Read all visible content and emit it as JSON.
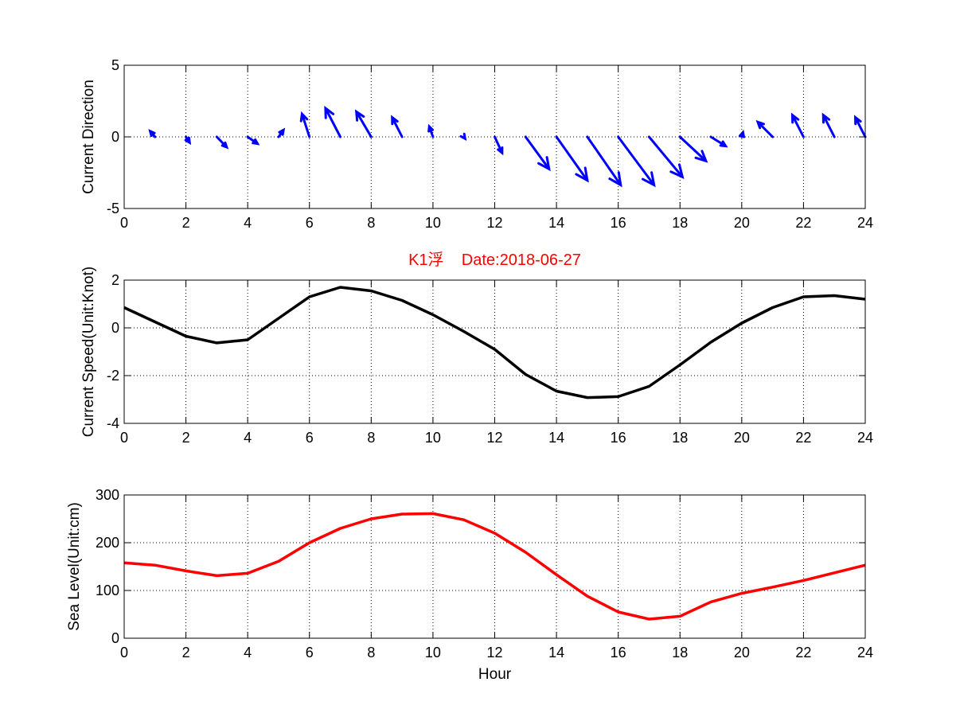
{
  "chart_data": [
    {
      "type": "quiver",
      "title": "",
      "xlabel": "",
      "ylabel": "Current Direction",
      "xlim": [
        0,
        24
      ],
      "ylim": [
        -5,
        5
      ],
      "xticks": [
        "0",
        "2",
        "4",
        "6",
        "8",
        "10",
        "12",
        "14",
        "16",
        "18",
        "20",
        "22",
        "24"
      ],
      "yticks": [
        "5",
        "0",
        "-5"
      ],
      "grid": true,
      "color": "#0000ff",
      "arrows": [
        {
          "x": 1,
          "u": -0.2,
          "v": 0.5
        },
        {
          "x": 2,
          "u": 0.15,
          "v": -0.5
        },
        {
          "x": 3,
          "u": 0.4,
          "v": -0.9
        },
        {
          "x": 4,
          "u": 0.4,
          "v": -0.6
        },
        {
          "x": 5,
          "u": 0.2,
          "v": 0.6
        },
        {
          "x": 6,
          "u": -0.3,
          "v": 2.0
        },
        {
          "x": 7,
          "u": -0.6,
          "v": 2.5
        },
        {
          "x": 8,
          "u": -0.6,
          "v": 2.2
        },
        {
          "x": 9,
          "u": -0.4,
          "v": 1.7
        },
        {
          "x": 10,
          "u": -0.15,
          "v": 0.9
        },
        {
          "x": 11,
          "u": 0.05,
          "v": -0.15
        },
        {
          "x": 12,
          "u": 0.3,
          "v": -1.4
        },
        {
          "x": 13,
          "u": 0.95,
          "v": -2.8
        },
        {
          "x": 14,
          "u": 1.25,
          "v": -3.8
        },
        {
          "x": 15,
          "u": 1.35,
          "v": -4.2
        },
        {
          "x": 16,
          "u": 1.45,
          "v": -4.2
        },
        {
          "x": 17,
          "u": 1.35,
          "v": -3.5
        },
        {
          "x": 18,
          "u": 1.05,
          "v": -2.1
        },
        {
          "x": 19,
          "u": 0.6,
          "v": -0.8
        },
        {
          "x": 20,
          "u": 0.05,
          "v": 0.4
        },
        {
          "x": 21,
          "u": -0.6,
          "v": 1.3
        },
        {
          "x": 22,
          "u": -0.45,
          "v": 1.9
        },
        {
          "x": 23,
          "u": -0.45,
          "v": 1.9
        },
        {
          "x": 24,
          "u": -0.4,
          "v": 1.7
        }
      ]
    },
    {
      "type": "line",
      "title": "K1浮    Date:2018-06-27",
      "title_color": "#ff0000",
      "xlabel": "",
      "ylabel": "Current Speed(Unit:Knot)",
      "xlim": [
        0,
        24
      ],
      "ylim": [
        -4,
        2
      ],
      "xticks": [
        "0",
        "2",
        "4",
        "6",
        "8",
        "10",
        "12",
        "14",
        "16",
        "18",
        "20",
        "22",
        "24"
      ],
      "yticks": [
        "2",
        "0",
        "-2",
        "-4"
      ],
      "grid": true,
      "color": "#000000",
      "x": [
        0,
        1,
        2,
        3,
        4,
        5,
        6,
        7,
        8,
        9,
        10,
        11,
        12,
        13,
        14,
        15,
        16,
        17,
        18,
        19,
        20,
        21,
        22,
        23,
        24
      ],
      "y": [
        0.85,
        0.25,
        -0.35,
        -0.63,
        -0.5,
        0.4,
        1.3,
        1.7,
        1.55,
        1.15,
        0.55,
        -0.15,
        -0.9,
        -1.95,
        -2.65,
        -2.92,
        -2.88,
        -2.45,
        -1.55,
        -0.6,
        0.2,
        0.85,
        1.3,
        1.35,
        1.2
      ]
    },
    {
      "type": "line",
      "title": "",
      "xlabel": "Hour",
      "ylabel": "Sea Level(Unit:cm)",
      "xlim": [
        0,
        24
      ],
      "ylim": [
        0,
        300
      ],
      "xticks": [
        "0",
        "2",
        "4",
        "6",
        "8",
        "10",
        "12",
        "14",
        "16",
        "18",
        "20",
        "22",
        "24"
      ],
      "yticks": [
        "300",
        "200",
        "100",
        "0"
      ],
      "grid": true,
      "color": "#ff0000",
      "x": [
        0,
        1,
        2,
        3,
        4,
        5,
        6,
        7,
        8,
        9,
        10,
        11,
        12,
        13,
        14,
        15,
        16,
        17,
        18,
        19,
        20,
        21,
        22,
        23,
        24
      ],
      "y": [
        158,
        153,
        141,
        131,
        136,
        161,
        200,
        230,
        250,
        260,
        261,
        248,
        220,
        180,
        133,
        88,
        55,
        40,
        46,
        76,
        94,
        107,
        121,
        137,
        153
      ]
    }
  ]
}
